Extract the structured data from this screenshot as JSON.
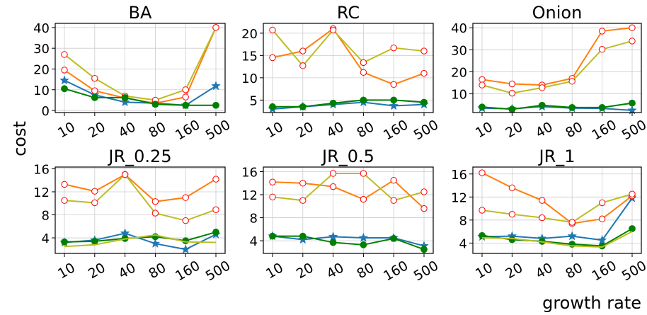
{
  "ylabel": "cost",
  "xlabel": "growth rate",
  "colors": {
    "blue": "#1f77b4",
    "orange": "#ff7f0e",
    "olive": "#bcbd22",
    "green": "#008000",
    "grid": "#cccccc"
  },
  "chart_data": [
    {
      "type": "line",
      "title": "BA",
      "categories": [
        "10",
        "20",
        "40",
        "80",
        "160",
        "500"
      ],
      "ylim": [
        -1,
        42
      ],
      "yticks": [
        0,
        10,
        20,
        30,
        40
      ],
      "grid": true,
      "series": [
        {
          "color": "#1f77b4",
          "marker": "star",
          "values": [
            14.5,
            7.5,
            4.0,
            3.5,
            2.5,
            11.8
          ]
        },
        {
          "color": "#ff7f0e",
          "marker": "circle-open",
          "values": [
            19.5,
            9.5,
            6.0,
            3.5,
            6.5,
            40.0
          ]
        },
        {
          "color": "#bcbd22",
          "marker": "circle-open",
          "values": [
            27.0,
            15.5,
            7.0,
            5.0,
            10.0,
            40.0
          ]
        },
        {
          "color": "#008000",
          "marker": "circle",
          "values": [
            10.5,
            6.2,
            6.2,
            3.0,
            2.5,
            2.5
          ]
        }
      ]
    },
    {
      "type": "line",
      "title": "RC",
      "categories": [
        "10",
        "20",
        "40",
        "80",
        "160",
        "500"
      ],
      "ylim": [
        2.2,
        22.2
      ],
      "yticks": [
        5,
        10,
        15,
        20
      ],
      "grid": true,
      "series": [
        {
          "color": "#1f77b4",
          "marker": "star",
          "values": [
            3.0,
            3.5,
            4.0,
            4.5,
            3.7,
            4.0
          ]
        },
        {
          "color": "#ff7f0e",
          "marker": "circle-open",
          "values": [
            14.5,
            16.0,
            21.0,
            11.2,
            8.5,
            11.0
          ]
        },
        {
          "color": "#bcbd22",
          "marker": "circle-open",
          "values": [
            20.7,
            12.7,
            20.7,
            13.4,
            16.7,
            16.0
          ]
        },
        {
          "color": "#008000",
          "marker": "circle",
          "values": [
            3.5,
            3.5,
            4.3,
            5.0,
            5.0,
            4.5
          ]
        }
      ]
    },
    {
      "type": "line",
      "title": "Onion",
      "categories": [
        "10",
        "20",
        "40",
        "80",
        "160",
        "500"
      ],
      "ylim": [
        1.5,
        42
      ],
      "yticks": [
        10,
        20,
        30,
        40
      ],
      "grid": true,
      "series": [
        {
          "color": "#1f77b4",
          "marker": "star",
          "values": [
            3.5,
            3.2,
            4.2,
            3.5,
            3.4,
            2.5
          ]
        },
        {
          "color": "#ff7f0e",
          "marker": "circle-open",
          "values": [
            16.5,
            14.5,
            14.0,
            17.0,
            38.5,
            40.0
          ]
        },
        {
          "color": "#bcbd22",
          "marker": "circle-open",
          "values": [
            14.0,
            10.3,
            12.8,
            15.7,
            30.2,
            34.0
          ]
        },
        {
          "color": "#008000",
          "marker": "circle",
          "values": [
            4.0,
            3.0,
            4.8,
            3.8,
            3.8,
            5.8
          ]
        }
      ]
    },
    {
      "type": "line",
      "title": "JR_0.25",
      "categories": [
        "10",
        "20",
        "40",
        "80",
        "160",
        "500"
      ],
      "ylim": [
        1.3,
        16.3
      ],
      "yticks": [
        4,
        8,
        12,
        16
      ],
      "grid": true,
      "series": [
        {
          "color": "#1f77b4",
          "marker": "star",
          "values": [
            3.2,
            3.6,
            4.8,
            3.0,
            2.0,
            4.6
          ]
        },
        {
          "color": "#ff7f0e",
          "marker": "circle-open",
          "values": [
            13.3,
            12.1,
            15.0,
            10.3,
            11.0,
            14.2
          ]
        },
        {
          "color": "#bcbd22",
          "marker": "circle-open",
          "values": [
            10.5,
            10.1,
            15.0,
            8.3,
            7.0,
            8.9
          ]
        },
        {
          "color": "#008000",
          "marker": "circle",
          "values": [
            3.3,
            3.4,
            3.9,
            4.2,
            3.5,
            5.0
          ]
        },
        {
          "color": "#bcbd22",
          "marker": "none",
          "values": [
            2.5,
            2.8,
            3.8,
            4.5,
            3.3,
            3.2
          ]
        }
      ]
    },
    {
      "type": "line",
      "title": "JR_0.5",
      "categories": [
        "10",
        "20",
        "40",
        "80",
        "160",
        "500"
      ],
      "ylim": [
        1.8,
        16.8
      ],
      "yticks": [
        4,
        8,
        12,
        16
      ],
      "grid": true,
      "series": [
        {
          "color": "#1f77b4",
          "marker": "star",
          "values": [
            4.8,
            4.2,
            4.7,
            4.5,
            4.5,
            3.1
          ]
        },
        {
          "color": "#ff7f0e",
          "marker": "circle-open",
          "values": [
            14.2,
            14.0,
            13.4,
            11.2,
            14.5,
            9.6
          ]
        },
        {
          "color": "#bcbd22",
          "marker": "circle-open",
          "values": [
            11.6,
            11.0,
            15.7,
            15.7,
            11.0,
            12.5
          ]
        },
        {
          "color": "#008000",
          "marker": "circle",
          "values": [
            4.8,
            4.8,
            3.7,
            3.3,
            4.4,
            2.5
          ]
        }
      ]
    },
    {
      "type": "line",
      "title": "JR_1",
      "categories": [
        "10",
        "20",
        "40",
        "80",
        "160",
        "500"
      ],
      "ylim": [
        2.2,
        17.2
      ],
      "yticks": [
        4,
        8,
        12,
        16
      ],
      "grid": true,
      "series": [
        {
          "color": "#1f77b4",
          "marker": "star",
          "values": [
            5.1,
            5.2,
            4.8,
            5.2,
            4.5,
            11.8
          ]
        },
        {
          "color": "#ff7f0e",
          "marker": "circle-open",
          "values": [
            16.2,
            13.6,
            11.4,
            7.4,
            8.2,
            12.2
          ]
        },
        {
          "color": "#bcbd22",
          "marker": "circle-open",
          "values": [
            9.7,
            9.0,
            8.4,
            7.6,
            11.0,
            12.5
          ]
        },
        {
          "color": "#008000",
          "marker": "circle",
          "values": [
            5.3,
            4.6,
            4.3,
            3.8,
            3.5,
            6.5
          ]
        },
        {
          "color": "#bcbd22",
          "marker": "none",
          "values": [
            4.9,
            4.8,
            4.2,
            3.5,
            3.3,
            6.0
          ]
        }
      ]
    }
  ]
}
